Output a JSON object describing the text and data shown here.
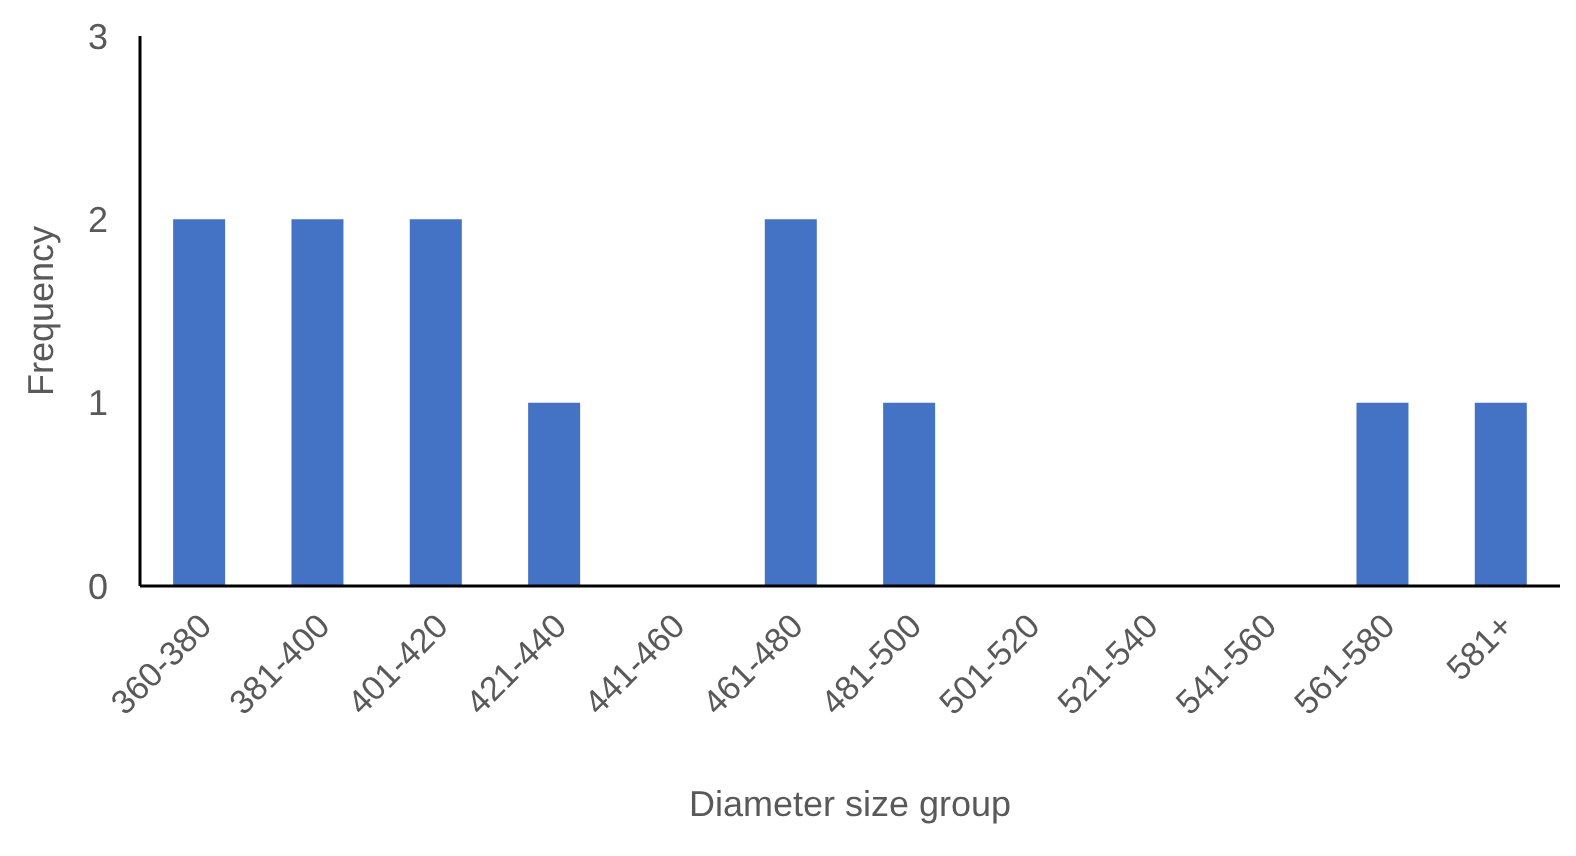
{
  "chart_data": {
    "type": "bar",
    "xlabel": "Diameter size group",
    "ylabel": "Frequency",
    "categories": [
      "360-380",
      "381-400",
      "401-420",
      "421-440",
      "441-460",
      "461-480",
      "481-500",
      "501-520",
      "521-540",
      "541-560",
      "561-580",
      "581+"
    ],
    "values": [
      2,
      2,
      2,
      1,
      0,
      2,
      1,
      0,
      0,
      0,
      1,
      1
    ],
    "color": "#4472c4",
    "ylim": [
      0,
      3
    ],
    "yticks": [
      0,
      1,
      2,
      3
    ]
  }
}
